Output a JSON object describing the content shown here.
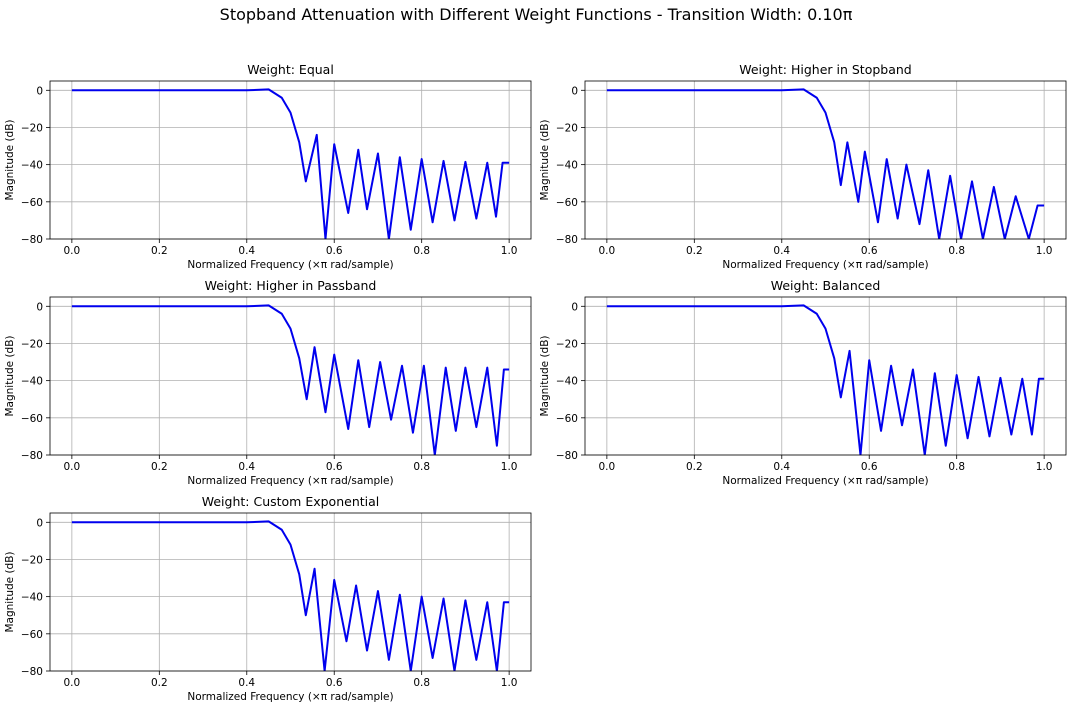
{
  "figure": {
    "title": "Stopband Attenuation with Different Weight Functions - Transition Width: 0.10π"
  },
  "chart_data": [
    {
      "type": "line",
      "title": "Weight: Equal",
      "xlabel": "Normalized Frequency (×π rad/sample)",
      "ylabel": "Magnitude (dB)",
      "xlim": [
        -0.05,
        1.05
      ],
      "ylim": [
        -80,
        5
      ],
      "xticks": [
        "0.0",
        "0.2",
        "0.4",
        "0.6",
        "0.8",
        "1.0"
      ],
      "yticks": [
        "0",
        "−20",
        "−40",
        "−60",
        "−80"
      ],
      "grid": true,
      "series": [
        {
          "color": "#0000ee",
          "x": [
            0.0,
            0.08,
            0.2,
            0.3,
            0.4,
            0.45,
            0.48,
            0.5,
            0.52,
            0.535,
            0.56,
            0.58,
            0.6,
            0.632,
            0.655,
            0.675,
            0.7,
            0.725,
            0.75,
            0.775,
            0.8,
            0.825,
            0.85,
            0.875,
            0.9,
            0.925,
            0.95,
            0.97,
            0.985,
            1.0
          ],
          "y": [
            0,
            0,
            0,
            0,
            0,
            0.5,
            -4,
            -12,
            -28,
            -49,
            -24,
            -80,
            -29,
            -66,
            -32,
            -64,
            -34,
            -80,
            -36,
            -75,
            -37,
            -71,
            -38,
            -70,
            -38.5,
            -69,
            -39,
            -68,
            -39,
            -39
          ]
        }
      ]
    },
    {
      "type": "line",
      "title": "Weight: Higher in Stopband",
      "xlabel": "Normalized Frequency (×π rad/sample)",
      "ylabel": "Magnitude (dB)",
      "xlim": [
        -0.05,
        1.05
      ],
      "ylim": [
        -80,
        5
      ],
      "xticks": [
        "0.0",
        "0.2",
        "0.4",
        "0.6",
        "0.8",
        "1.0"
      ],
      "yticks": [
        "0",
        "−20",
        "−40",
        "−60",
        "−80"
      ],
      "grid": true,
      "series": [
        {
          "color": "#0000ee",
          "x": [
            0.0,
            0.08,
            0.2,
            0.3,
            0.4,
            0.45,
            0.48,
            0.5,
            0.52,
            0.535,
            0.55,
            0.575,
            0.59,
            0.62,
            0.64,
            0.665,
            0.685,
            0.715,
            0.735,
            0.76,
            0.785,
            0.81,
            0.835,
            0.86,
            0.885,
            0.91,
            0.935,
            0.965,
            0.985,
            1.0
          ],
          "y": [
            0,
            0,
            0,
            0,
            0,
            0.5,
            -4,
            -12,
            -28,
            -51,
            -28,
            -60,
            -33,
            -71,
            -37,
            -69,
            -40,
            -72,
            -43,
            -80,
            -46,
            -80,
            -49,
            -80,
            -52,
            -80,
            -57,
            -80,
            -62,
            -62
          ]
        }
      ]
    },
    {
      "type": "line",
      "title": "Weight: Higher in Passband",
      "xlabel": "Normalized Frequency (×π rad/sample)",
      "ylabel": "Magnitude (dB)",
      "xlim": [
        -0.05,
        1.05
      ],
      "ylim": [
        -80,
        5
      ],
      "xticks": [
        "0.0",
        "0.2",
        "0.4",
        "0.6",
        "0.8",
        "1.0"
      ],
      "yticks": [
        "0",
        "−20",
        "−40",
        "−60",
        "−80"
      ],
      "grid": true,
      "series": [
        {
          "color": "#0000ee",
          "x": [
            0.0,
            0.08,
            0.2,
            0.3,
            0.4,
            0.45,
            0.48,
            0.5,
            0.52,
            0.537,
            0.555,
            0.58,
            0.6,
            0.632,
            0.655,
            0.68,
            0.705,
            0.73,
            0.755,
            0.78,
            0.805,
            0.83,
            0.855,
            0.878,
            0.9,
            0.925,
            0.95,
            0.972,
            0.988,
            1.0
          ],
          "y": [
            0,
            0,
            0,
            0,
            0,
            0.5,
            -4,
            -12,
            -28,
            -50,
            -22,
            -57,
            -26,
            -66,
            -29,
            -65,
            -30,
            -61,
            -32,
            -68,
            -32,
            -80,
            -33,
            -67,
            -33,
            -65,
            -33,
            -75,
            -34,
            -34
          ]
        }
      ]
    },
    {
      "type": "line",
      "title": "Weight: Balanced",
      "xlabel": "Normalized Frequency (×π rad/sample)",
      "ylabel": "Magnitude (dB)",
      "xlim": [
        -0.05,
        1.05
      ],
      "ylim": [
        -80,
        5
      ],
      "xticks": [
        "0.0",
        "0.2",
        "0.4",
        "0.6",
        "0.8",
        "1.0"
      ],
      "yticks": [
        "0",
        "−20",
        "−40",
        "−60",
        "−80"
      ],
      "grid": true,
      "series": [
        {
          "color": "#0000ee",
          "x": [
            0.0,
            0.08,
            0.2,
            0.3,
            0.4,
            0.45,
            0.48,
            0.5,
            0.52,
            0.535,
            0.555,
            0.58,
            0.6,
            0.627,
            0.65,
            0.675,
            0.7,
            0.727,
            0.75,
            0.775,
            0.8,
            0.825,
            0.85,
            0.875,
            0.9,
            0.925,
            0.95,
            0.972,
            0.988,
            1.0
          ],
          "y": [
            0,
            0,
            0,
            0,
            0,
            0.5,
            -4,
            -12,
            -28,
            -49,
            -24,
            -80,
            -29,
            -67,
            -32,
            -64,
            -34,
            -80,
            -36,
            -75,
            -37,
            -71,
            -38,
            -70,
            -38.5,
            -69,
            -39,
            -69,
            -39,
            -39
          ]
        }
      ]
    },
    {
      "type": "line",
      "title": "Weight: Custom Exponential",
      "xlabel": "Normalized Frequency (×π rad/sample)",
      "ylabel": "Magnitude (dB)",
      "xlim": [
        -0.05,
        1.05
      ],
      "ylim": [
        -80,
        5
      ],
      "xticks": [
        "0.0",
        "0.2",
        "0.4",
        "0.6",
        "0.8",
        "1.0"
      ],
      "yticks": [
        "0",
        "−20",
        "−40",
        "−60",
        "−80"
      ],
      "grid": true,
      "series": [
        {
          "color": "#0000ee",
          "x": [
            0.0,
            0.08,
            0.2,
            0.3,
            0.4,
            0.45,
            0.48,
            0.5,
            0.52,
            0.535,
            0.555,
            0.578,
            0.6,
            0.628,
            0.65,
            0.675,
            0.7,
            0.725,
            0.75,
            0.775,
            0.8,
            0.825,
            0.85,
            0.875,
            0.9,
            0.925,
            0.95,
            0.972,
            0.988,
            1.0
          ],
          "y": [
            0,
            0,
            0,
            0,
            0,
            0.5,
            -4,
            -12,
            -28,
            -50,
            -25,
            -80,
            -31,
            -64,
            -34,
            -69,
            -37,
            -74,
            -39,
            -80,
            -40,
            -73,
            -41,
            -80,
            -42,
            -74,
            -43,
            -80,
            -43,
            -43
          ]
        }
      ]
    }
  ]
}
